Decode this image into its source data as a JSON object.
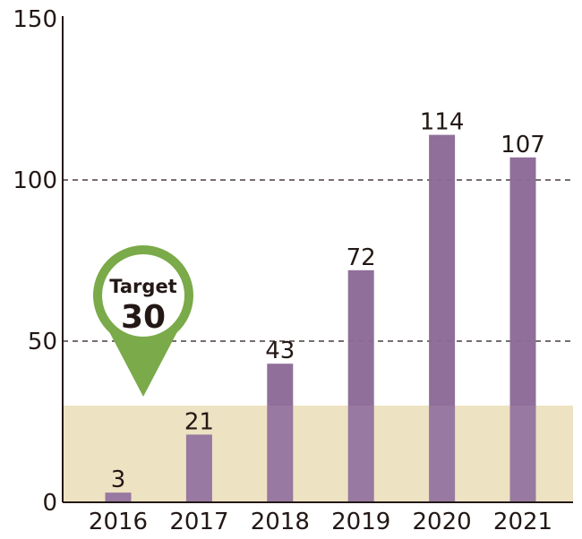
{
  "chart_data": {
    "type": "bar",
    "categories": [
      "2016",
      "2017",
      "2018",
      "2019",
      "2020",
      "2021"
    ],
    "values": [
      3,
      21,
      43,
      72,
      114,
      107
    ],
    "data_labels": [
      "3",
      "21",
      "43",
      "72",
      "114",
      "107"
    ],
    "title": "",
    "xlabel": "",
    "ylabel": "",
    "ylim": [
      0,
      150
    ],
    "yticks": [
      0,
      50,
      100,
      150
    ],
    "ytick_labels": [
      "0",
      "50",
      "100",
      "150"
    ],
    "grid": "dashed horizontal at 50 and 100",
    "legend": "none",
    "target": {
      "label": "Target",
      "value": 30,
      "value_label": "30"
    }
  },
  "colors": {
    "bar": "#8c6a98",
    "target_band": "#ede2c2",
    "target_pin": "#7aaa49",
    "axis": "#231815",
    "grid": "#231815"
  },
  "icons": {
    "target_marker": "map-pin-icon"
  }
}
